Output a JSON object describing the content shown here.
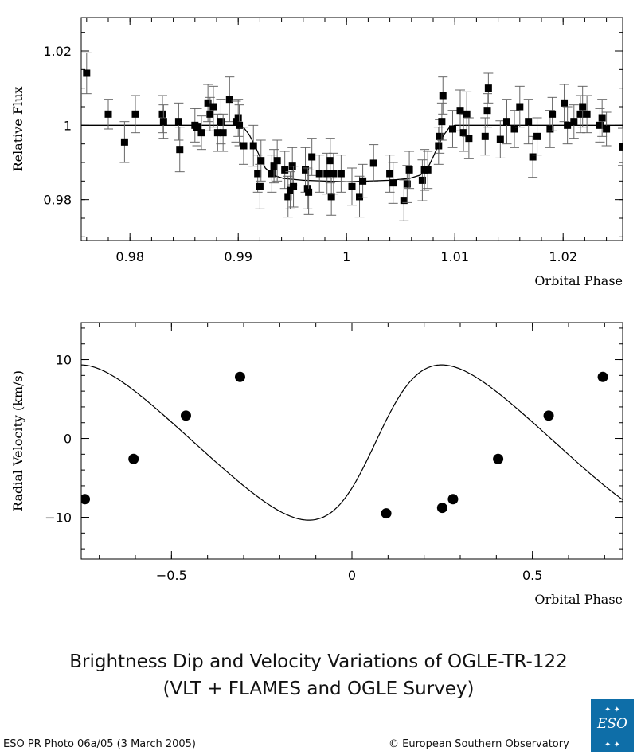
{
  "chart_data": [
    {
      "type": "scatter",
      "xlabel": "Orbital Phase",
      "ylabel": "Relative Flux",
      "xlim": [
        0.9755,
        1.0255
      ],
      "ylim": [
        0.969,
        1.029
      ],
      "xticks": [
        0.98,
        0.99,
        1.0,
        1.01,
        1.02
      ],
      "xtick_labels": [
        "0.98",
        "0.99",
        "1",
        "1.01",
        "1.02"
      ],
      "yticks": [
        0.98,
        1.0,
        1.02
      ],
      "ytick_labels": [
        "0.98",
        "1",
        "1.02"
      ],
      "grid": false,
      "marker": "square",
      "points": [
        [
          0.976,
          1.014,
          0.0055
        ],
        [
          0.978,
          1.003,
          0.004
        ],
        [
          0.9795,
          0.9955,
          0.0055
        ],
        [
          0.9805,
          1.003,
          0.005
        ],
        [
          0.983,
          1.003,
          0.005
        ],
        [
          0.9831,
          1.001,
          0.0045
        ],
        [
          0.9845,
          1.001,
          0.005
        ],
        [
          0.9846,
          0.9935,
          0.006
        ],
        [
          0.986,
          1.0,
          0.0045
        ],
        [
          0.9862,
          0.9995,
          0.005
        ],
        [
          0.9866,
          0.998,
          0.0045
        ],
        [
          0.9872,
          1.006,
          0.005
        ],
        [
          0.9874,
          1.003,
          0.0045
        ],
        [
          0.9877,
          1.005,
          0.0055
        ],
        [
          0.9881,
          0.998,
          0.005
        ],
        [
          0.9884,
          1.001,
          0.006
        ],
        [
          0.9886,
          0.998,
          0.005
        ],
        [
          0.9892,
          1.007,
          0.006
        ],
        [
          0.9898,
          1.001,
          0.0055
        ],
        [
          0.99,
          1.002,
          0.005
        ],
        [
          0.9901,
          1.0,
          0.0055
        ],
        [
          0.9905,
          0.9945,
          0.005
        ],
        [
          0.9914,
          0.9945,
          0.0055
        ],
        [
          0.9918,
          0.987,
          0.005
        ],
        [
          0.992,
          0.9835,
          0.006
        ],
        [
          0.9921,
          0.9905,
          0.0055
        ],
        [
          0.9931,
          0.987,
          0.005
        ],
        [
          0.9933,
          0.989,
          0.0045
        ],
        [
          0.9936,
          0.9905,
          0.0055
        ],
        [
          0.9943,
          0.988,
          0.005
        ],
        [
          0.9946,
          0.9808,
          0.0055
        ],
        [
          0.9948,
          0.9825,
          0.005
        ],
        [
          0.995,
          0.989,
          0.005
        ],
        [
          0.9951,
          0.9835,
          0.0055
        ],
        [
          0.9962,
          0.988,
          0.006
        ],
        [
          0.9964,
          0.983,
          0.0055
        ],
        [
          0.9965,
          0.982,
          0.006
        ],
        [
          0.9968,
          0.9915,
          0.005
        ],
        [
          0.9975,
          0.987,
          0.005
        ],
        [
          0.9982,
          0.987,
          0.0055
        ],
        [
          0.9985,
          0.9905,
          0.006
        ],
        [
          0.9986,
          0.9808,
          0.005
        ],
        [
          0.9988,
          0.987,
          0.0055
        ],
        [
          0.9995,
          0.987,
          0.005
        ],
        [
          1.0005,
          0.9835,
          0.005
        ],
        [
          1.0012,
          0.9808,
          0.0055
        ],
        [
          1.0015,
          0.985,
          0.0045
        ],
        [
          1.0025,
          0.9898,
          0.005
        ],
        [
          1.004,
          0.987,
          0.005
        ],
        [
          1.0043,
          0.9845,
          0.0055
        ],
        [
          1.0053,
          0.9798,
          0.0055
        ],
        [
          1.0056,
          0.9842,
          0.005
        ],
        [
          1.0058,
          0.988,
          0.005
        ],
        [
          1.007,
          0.9852,
          0.0055
        ],
        [
          1.0072,
          0.988,
          0.0055
        ],
        [
          1.0075,
          0.988,
          0.005
        ],
        [
          1.0085,
          0.9945,
          0.005
        ],
        [
          1.0086,
          0.997,
          0.0045
        ],
        [
          1.0088,
          1.001,
          0.005
        ],
        [
          1.0089,
          1.008,
          0.005
        ],
        [
          1.0098,
          0.999,
          0.005
        ],
        [
          1.0105,
          1.004,
          0.0055
        ],
        [
          1.0108,
          0.998,
          0.005
        ],
        [
          1.0111,
          1.003,
          0.006
        ],
        [
          1.0113,
          0.9965,
          0.0055
        ],
        [
          1.0128,
          0.997,
          0.005
        ],
        [
          1.013,
          1.004,
          0.0045
        ],
        [
          1.0131,
          1.01,
          0.004
        ],
        [
          1.0142,
          0.9962,
          0.005
        ],
        [
          1.0148,
          1.001,
          0.006
        ],
        [
          1.0155,
          0.999,
          0.005
        ],
        [
          1.016,
          1.005,
          0.0055
        ],
        [
          1.0168,
          1.001,
          0.006
        ],
        [
          1.0172,
          0.9915,
          0.0055
        ],
        [
          1.0176,
          0.997,
          0.005
        ],
        [
          1.0188,
          0.999,
          0.005
        ],
        [
          1.019,
          1.003,
          0.0045
        ],
        [
          1.0201,
          1.006,
          0.005
        ],
        [
          1.0204,
          1.0,
          0.005
        ],
        [
          1.021,
          1.001,
          0.0045
        ],
        [
          1.0216,
          1.003,
          0.005
        ],
        [
          1.0218,
          1.005,
          0.0055
        ],
        [
          1.0222,
          1.003,
          0.005
        ],
        [
          1.0234,
          1.0,
          0.0045
        ],
        [
          1.0236,
          1.002,
          0.005
        ],
        [
          1.024,
          0.999,
          0.0045
        ],
        [
          1.0255,
          0.9942,
          0.005
        ]
      ],
      "model": [
        [
          0.9755,
          1.0
        ],
        [
          0.99,
          1.0
        ],
        [
          0.9905,
          0.9994
        ],
        [
          0.991,
          0.9975
        ],
        [
          0.9915,
          0.9948
        ],
        [
          0.992,
          0.9915
        ],
        [
          0.9925,
          0.9885
        ],
        [
          0.9932,
          0.9866
        ],
        [
          0.9942,
          0.9857
        ],
        [
          0.996,
          0.9852
        ],
        [
          1.0,
          0.9848
        ],
        [
          1.004,
          0.9852
        ],
        [
          1.0058,
          0.9857
        ],
        [
          1.0068,
          0.9866
        ],
        [
          1.0075,
          0.9885
        ],
        [
          1.008,
          0.9915
        ],
        [
          1.0085,
          0.9948
        ],
        [
          1.009,
          0.9975
        ],
        [
          1.0095,
          0.9994
        ],
        [
          1.01,
          1.0
        ],
        [
          1.0255,
          1.0
        ]
      ]
    },
    {
      "type": "scatter",
      "xlabel": "Orbital Phase",
      "ylabel": "Radial Velocity (km/s)",
      "xlim": [
        -0.75,
        0.75
      ],
      "ylim": [
        -15.3,
        14.7
      ],
      "xticks": [
        -0.5,
        0,
        0.5
      ],
      "xtick_labels": [
        "−0.5",
        "0",
        "0.5"
      ],
      "yticks": [
        -10,
        0,
        10
      ],
      "ytick_labels": [
        "−10",
        "0",
        "10"
      ],
      "grid": false,
      "marker": "circle",
      "points": [
        [
          -0.74,
          -7.7
        ],
        [
          -0.605,
          -2.6
        ],
        [
          -0.46,
          2.9
        ],
        [
          -0.31,
          7.8
        ],
        [
          0.095,
          -9.5
        ],
        [
          0.25,
          -8.8
        ],
        [
          0.28,
          -7.7
        ],
        [
          0.405,
          -2.6
        ],
        [
          0.545,
          2.9
        ],
        [
          0.695,
          7.8
        ]
      ],
      "model_params": {
        "K": 9.85,
        "e": 0.21,
        "omega_deg": 271,
        "gamma": -0.55,
        "t_peri": 0.067
      }
    }
  ],
  "caption": {
    "line1": "Brightness Dip and Velocity Variations of OGLE-TR-122",
    "line2": "(VLT + FLAMES and OGLE Survey)"
  },
  "credits": {
    "left": "ESO PR Photo 06a/05 (3 March 2005)",
    "right": "© European Southern Observatory"
  },
  "logo": {
    "text": "ESO",
    "color": "#0e6ea8"
  }
}
